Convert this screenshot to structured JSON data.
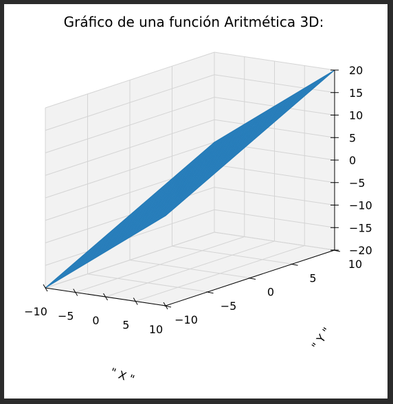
{
  "chart_data": {
    "type": "surface3d",
    "title": "Gráfico de una función Aritmética 3D:",
    "xlabel": "\" X \"",
    "ylabel": "\" Y \"",
    "zlabel": "",
    "function": "z = x + y",
    "xlim": [
      -10,
      10
    ],
    "ylim": [
      -10,
      10
    ],
    "zlim": [
      -20,
      20
    ],
    "x_ticks": [
      -10,
      -5,
      0,
      5,
      10
    ],
    "y_ticks": [
      -10,
      -5,
      0,
      5,
      10
    ],
    "z_ticks": [
      20,
      15,
      10,
      5,
      0,
      -5,
      -10,
      -15,
      -20
    ],
    "x_tick_labels": [
      "−10",
      "−5",
      "0",
      "5",
      "10"
    ],
    "y_tick_labels": [
      "−10",
      "−5",
      "0",
      "5",
      "10"
    ],
    "z_tick_labels": [
      "20",
      "15",
      "10",
      "5",
      "0",
      "−5",
      "−10",
      "−15",
      "−20"
    ],
    "corners": [
      {
        "x": -10,
        "y": -10,
        "z": -20
      },
      {
        "x": 10,
        "y": -10,
        "z": 0
      },
      {
        "x": 10,
        "y": 10,
        "z": 20
      },
      {
        "x": -10,
        "y": 10,
        "z": 0
      }
    ],
    "grid": true,
    "surface_color": "#1f77b4"
  },
  "colors": {
    "pane": "#f2f2f2",
    "grid": "#d4d4d4",
    "axis": "#000000",
    "surface": "#1f77b4",
    "mesh": "#3d8fc9"
  }
}
